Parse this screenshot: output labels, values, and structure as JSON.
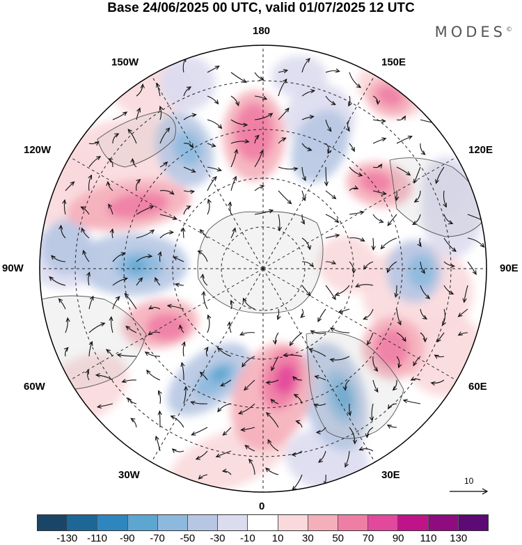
{
  "header": {
    "title": "Base 24/06/2025 00 UTC, valid 01/07/2025 12 UTC",
    "brand": "MODES",
    "brand_mark": "©"
  },
  "map": {
    "projection": "north polar stereographic",
    "longitude_labels": {
      "top": "180",
      "bottom": "0",
      "left": "90W",
      "right": "90E",
      "upper_left_1": "150W",
      "upper_left_2": "120W",
      "lower_left_1": "60W",
      "lower_left_2": "30W",
      "upper_right_1": "150E",
      "upper_right_2": "120E",
      "lower_right_1": "60E",
      "lower_right_2": "30E"
    }
  },
  "vector_legend": {
    "label": "10"
  },
  "colorbar": {
    "colors": [
      "#1a4566",
      "#1d6796",
      "#2f86be",
      "#5ea6d2",
      "#8db9df",
      "#b7c7e3",
      "#dcdcef",
      "#ffffff",
      "#f9d9dc",
      "#f5afba",
      "#ef7ea5",
      "#e2489b",
      "#c0138a",
      "#8e0c7f",
      "#5d0a76"
    ],
    "tick_labels": [
      "-130",
      "-110",
      "-90",
      "-70",
      "-50",
      "-30",
      "-10",
      "10",
      "30",
      "50",
      "70",
      "90",
      "110",
      "130"
    ]
  }
}
